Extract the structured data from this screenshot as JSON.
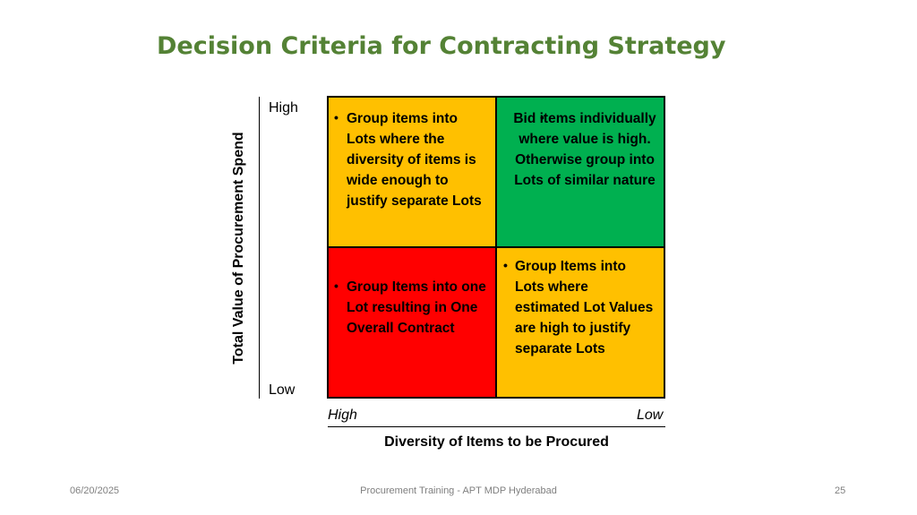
{
  "slide": {
    "title": "Decision Criteria for Contracting Strategy",
    "y_axis": {
      "label": "Total Value of Procurement Spend",
      "high": "High",
      "low": "Low"
    },
    "x_axis": {
      "label": "Diversity of Items to be Procured",
      "high": "High",
      "low": "Low"
    },
    "quadrants": {
      "top_left": {
        "color": "#FFC000",
        "text": "Group items into Lots where the diversity of items is wide enough to justify separate Lots"
      },
      "top_right": {
        "color": "#00B050",
        "text": "Bid items individually where value is high. Otherwise group into Lots of similar nature"
      },
      "bottom_left": {
        "color": "#FF0000",
        "text": "Group Items into one Lot resulting in One Overall Contract"
      },
      "bottom_right": {
        "color": "#FFC000",
        "text": "Group Items into Lots where estimated Lot Values are high to justify separate Lots"
      }
    },
    "bullet": "•",
    "footer": {
      "date": "06/20/2025",
      "center": "Procurement Training - APT MDP Hyderabad",
      "page": "25"
    }
  }
}
